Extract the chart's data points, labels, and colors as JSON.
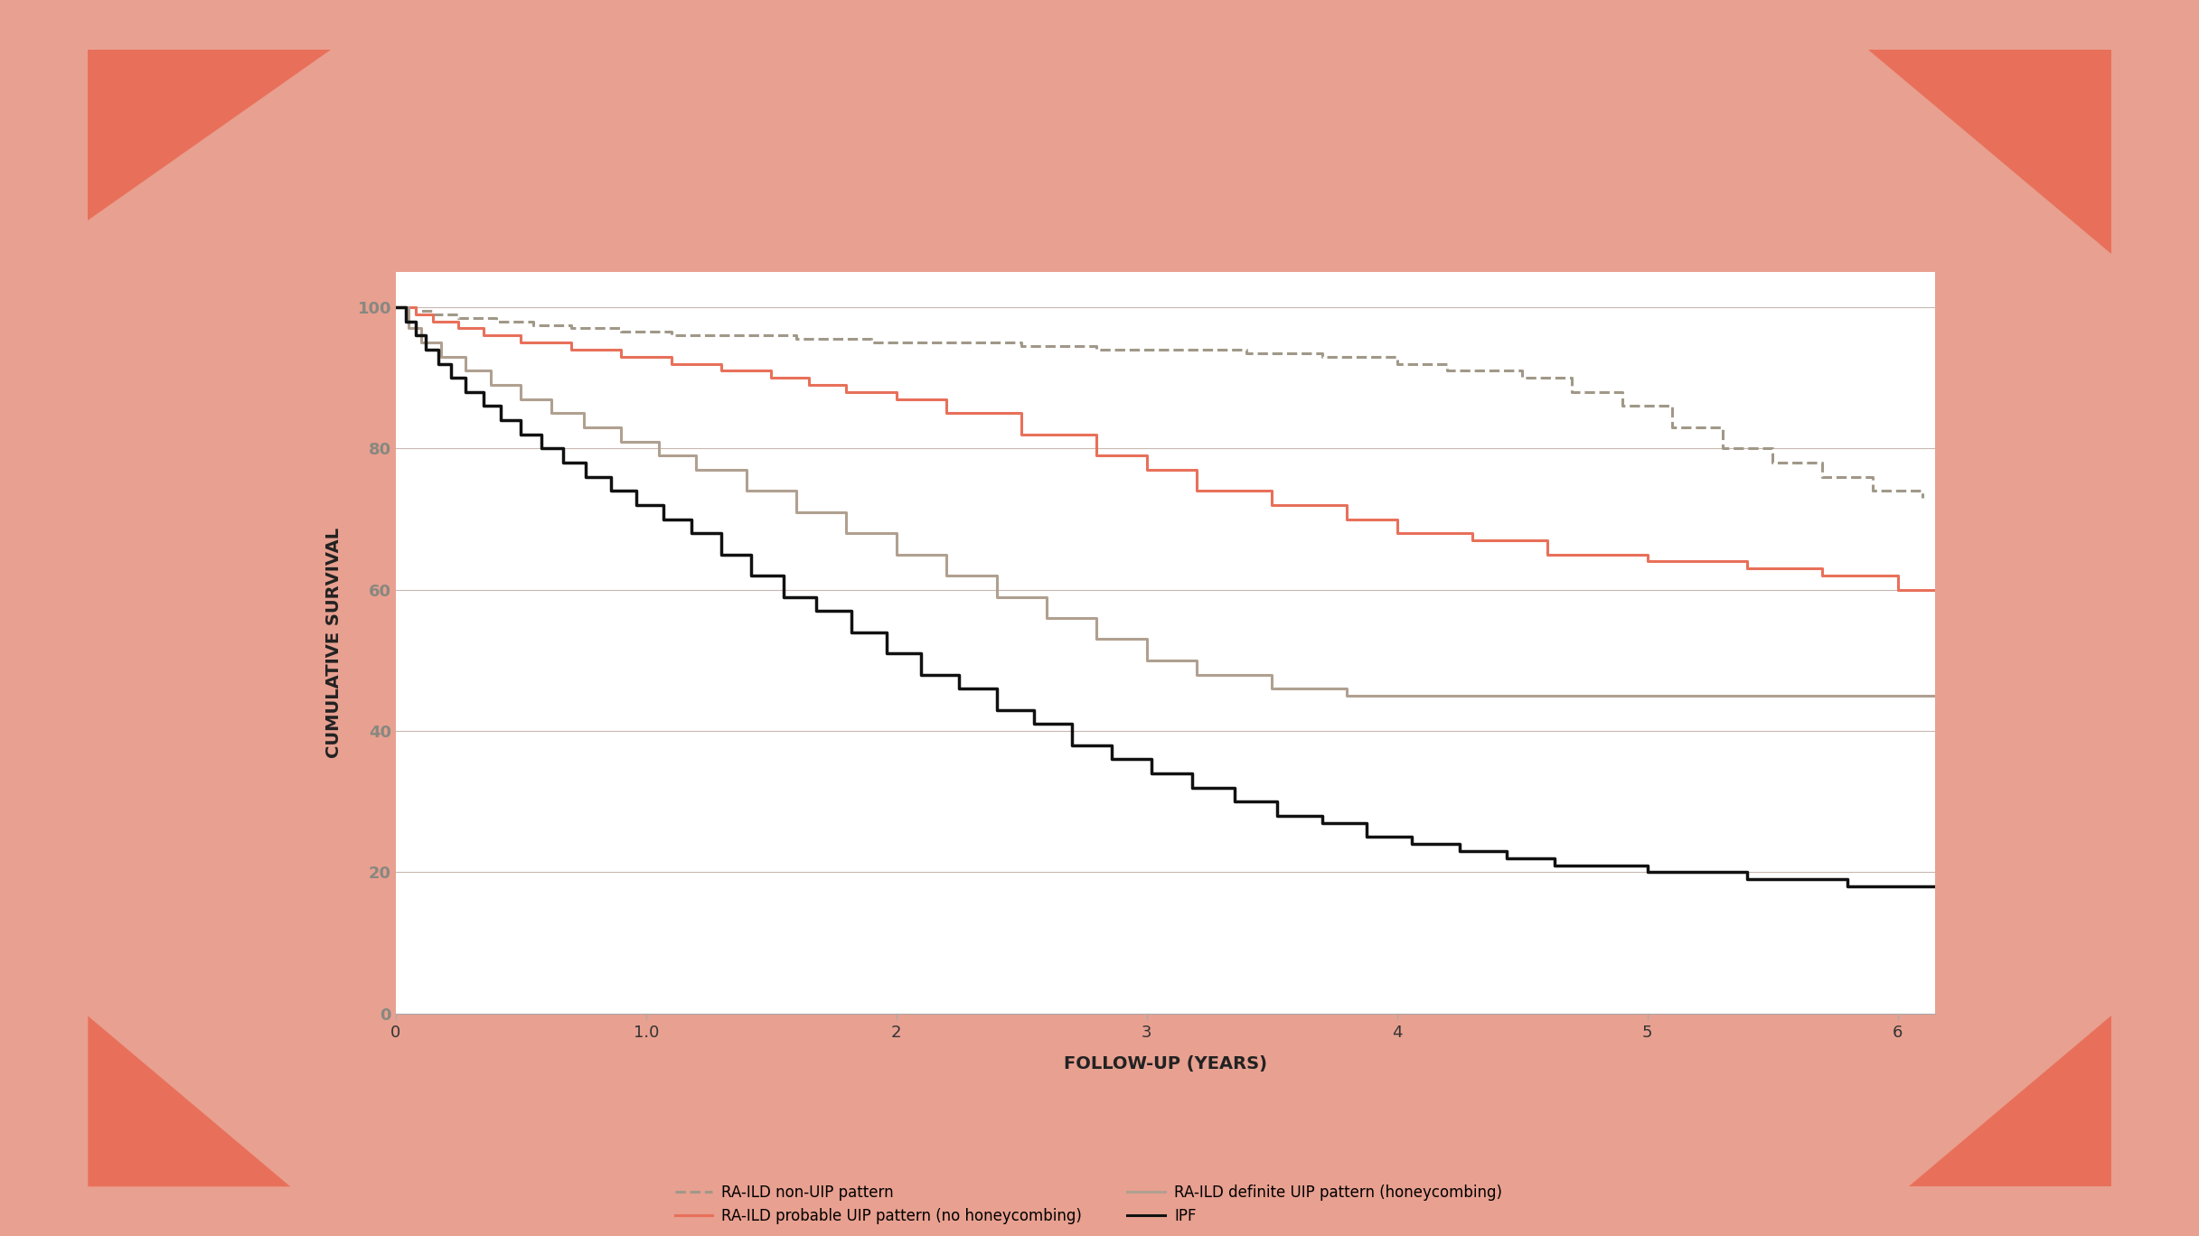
{
  "slide_bg_color": "#e8a090",
  "card_color": "#ffffff",
  "plot_bg_color": "#ffffff",
  "xlabel": "FOLLOW-UP (YEARS)",
  "ylabel": "CUMULATIVE SURVIVAL",
  "xlim": [
    0,
    6.15
  ],
  "ylim": [
    0,
    105
  ],
  "xticks": [
    0,
    1.0,
    2.0,
    3.0,
    4.0,
    5.0,
    6.0
  ],
  "yticks": [
    0,
    20,
    40,
    60,
    80,
    100
  ],
  "grid_color": "#c8b8b0",
  "series": [
    {
      "label": "RA-ILD non-UIP pattern",
      "color": "#a09888",
      "linestyle": "dashed",
      "linewidth": 2.2,
      "x": [
        0,
        0.08,
        0.15,
        0.25,
        0.4,
        0.55,
        0.7,
        0.9,
        1.1,
        1.3,
        1.6,
        1.9,
        2.2,
        2.5,
        2.8,
        3.1,
        3.4,
        3.7,
        4.0,
        4.2,
        4.5,
        4.7,
        4.9,
        5.1,
        5.3,
        5.5,
        5.7,
        5.9,
        6.1
      ],
      "y": [
        100,
        99.5,
        99,
        98.5,
        98,
        97.5,
        97,
        96.5,
        96,
        96,
        95.5,
        95,
        95,
        94.5,
        94,
        94,
        93.5,
        93,
        92,
        91,
        90,
        88,
        86,
        83,
        80,
        78,
        76,
        74,
        73
      ]
    },
    {
      "label": "RA-ILD probable UIP pattern (no honeycombing)",
      "color": "#e8705a",
      "linestyle": "solid",
      "linewidth": 2.2,
      "x": [
        0,
        0.08,
        0.15,
        0.25,
        0.35,
        0.5,
        0.7,
        0.9,
        1.1,
        1.3,
        1.5,
        1.65,
        1.8,
        2.0,
        2.2,
        2.5,
        2.8,
        3.0,
        3.2,
        3.5,
        3.8,
        4.0,
        4.3,
        4.6,
        5.0,
        5.4,
        5.7,
        5.85,
        6.0,
        6.15
      ],
      "y": [
        100,
        99,
        98,
        97,
        96,
        95,
        94,
        93,
        92,
        91,
        90,
        89,
        88,
        87,
        85,
        82,
        79,
        77,
        74,
        72,
        70,
        68,
        67,
        65,
        64,
        63,
        62,
        62,
        60,
        60
      ]
    },
    {
      "label": "RA-ILD definite UIP pattern (honeycombing)",
      "color": "#b0a090",
      "linestyle": "solid",
      "linewidth": 2.2,
      "x": [
        0,
        0.05,
        0.1,
        0.18,
        0.28,
        0.38,
        0.5,
        0.62,
        0.75,
        0.9,
        1.05,
        1.2,
        1.4,
        1.6,
        1.8,
        2.0,
        2.2,
        2.4,
        2.6,
        2.8,
        3.0,
        3.2,
        3.5,
        3.8,
        4.0,
        4.2,
        4.5,
        6.15
      ],
      "y": [
        100,
        97,
        95,
        93,
        91,
        89,
        87,
        85,
        83,
        81,
        79,
        77,
        74,
        71,
        68,
        65,
        62,
        59,
        56,
        53,
        50,
        48,
        46,
        45,
        45,
        45,
        45,
        45
      ]
    },
    {
      "label": "IPF",
      "color": "#111111",
      "linestyle": "solid",
      "linewidth": 2.5,
      "x": [
        0,
        0.04,
        0.08,
        0.12,
        0.17,
        0.22,
        0.28,
        0.35,
        0.42,
        0.5,
        0.58,
        0.67,
        0.76,
        0.86,
        0.96,
        1.07,
        1.18,
        1.3,
        1.42,
        1.55,
        1.68,
        1.82,
        1.96,
        2.1,
        2.25,
        2.4,
        2.55,
        2.7,
        2.86,
        3.02,
        3.18,
        3.35,
        3.52,
        3.7,
        3.88,
        4.06,
        4.25,
        4.44,
        4.63,
        4.83,
        5.0,
        5.2,
        5.4,
        5.6,
        5.8,
        6.0,
        6.15
      ],
      "y": [
        100,
        98,
        96,
        94,
        92,
        90,
        88,
        86,
        84,
        82,
        80,
        78,
        76,
        74,
        72,
        70,
        68,
        65,
        62,
        59,
        57,
        54,
        51,
        48,
        46,
        43,
        41,
        38,
        36,
        34,
        32,
        30,
        28,
        27,
        25,
        24,
        23,
        22,
        21,
        21,
        20,
        20,
        19,
        19,
        18,
        18,
        18
      ]
    }
  ],
  "legend_entries": [
    {
      "label": "RA-ILD non-UIP pattern",
      "color": "#a09888",
      "linestyle": "dashed"
    },
    {
      "label": "RA-ILD probable UIP pattern (no honeycombing)",
      "color": "#e8705a",
      "linestyle": "solid"
    },
    {
      "label": "RA-ILD definite UIP pattern (honeycombing)",
      "color": "#b0a090",
      "linestyle": "solid"
    },
    {
      "label": "IPF",
      "color": "#111111",
      "linestyle": "solid"
    }
  ],
  "axis_label_fontsize": 14,
  "tick_fontsize": 13,
  "legend_fontsize": 12,
  "corner_color": "#e8705a"
}
